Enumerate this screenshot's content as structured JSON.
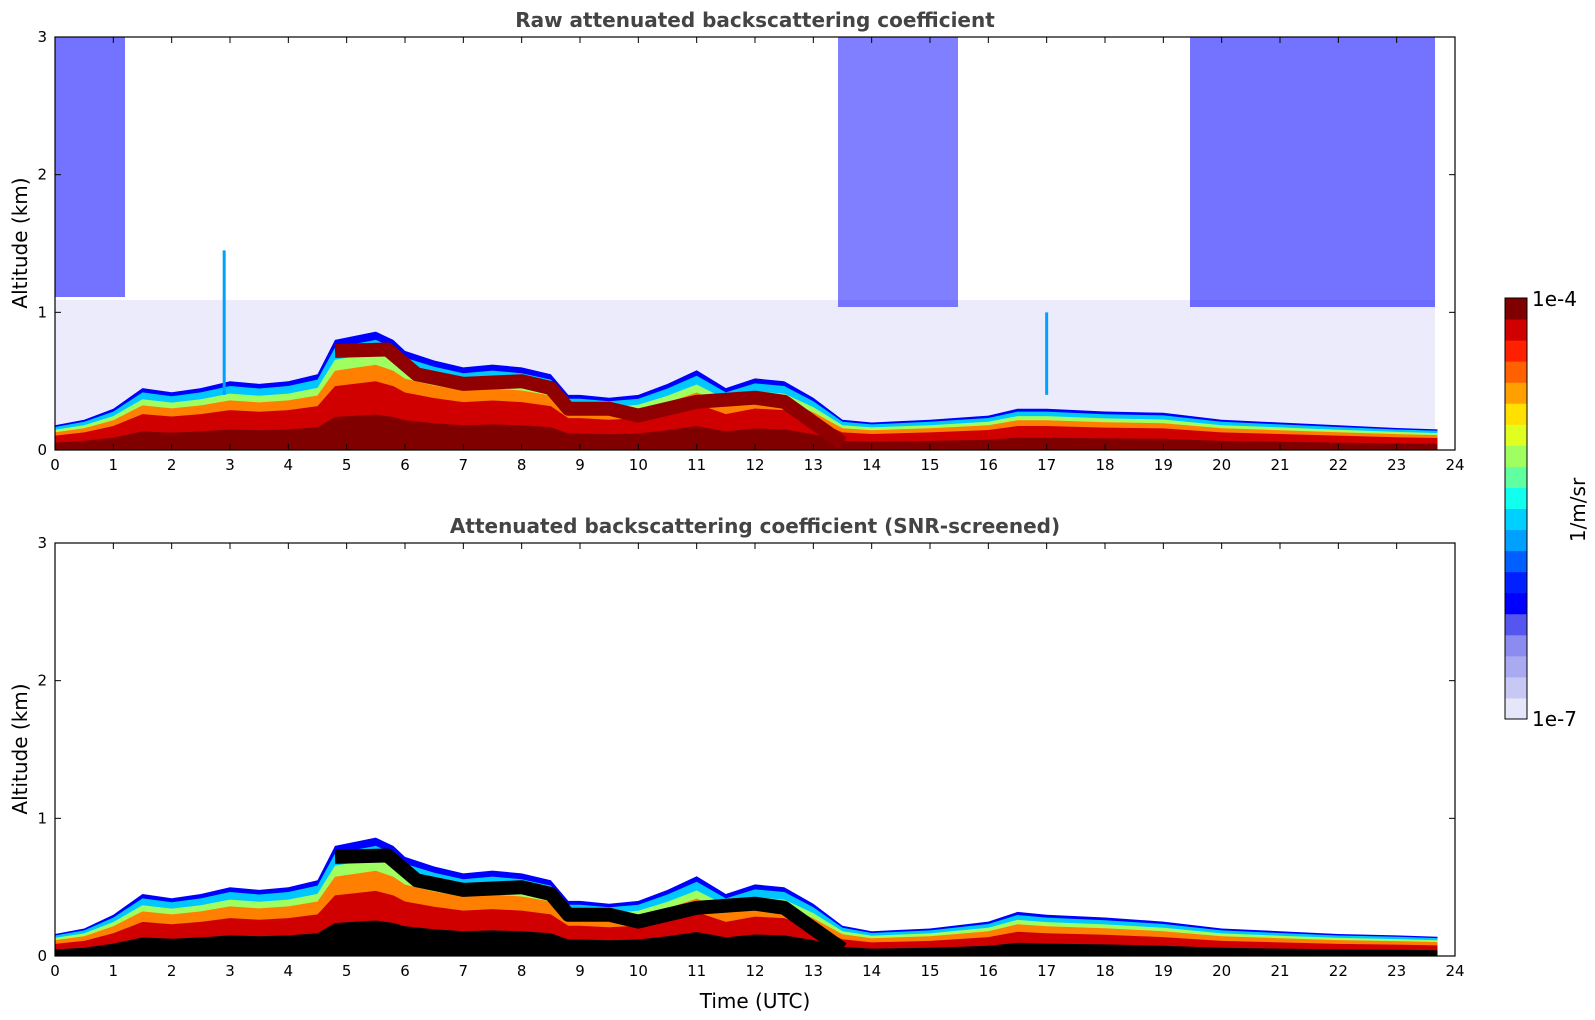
{
  "chart_data": [
    {
      "type": "heatmap",
      "title": "Raw attenuated backscattering coefficient",
      "xlabel": "",
      "ylabel": "Altitude (km)",
      "xlim": [
        0,
        24
      ],
      "ylim": [
        0,
        3
      ],
      "xticks": [
        "0",
        "1",
        "2",
        "3",
        "4",
        "5",
        "6",
        "7",
        "8",
        "9",
        "10",
        "11",
        "12",
        "13",
        "14",
        "15",
        "16",
        "17",
        "18",
        "19",
        "20",
        "21",
        "22",
        "23",
        "24"
      ],
      "yticks": [
        "0",
        "1",
        "2",
        "3"
      ],
      "data_end_hour": 23.7,
      "boundary_layer_top_km": [
        [
          0,
          0.18
        ],
        [
          0.5,
          0.22
        ],
        [
          1,
          0.3
        ],
        [
          1.5,
          0.45
        ],
        [
          2,
          0.42
        ],
        [
          2.5,
          0.45
        ],
        [
          3,
          0.5
        ],
        [
          3.5,
          0.48
        ],
        [
          4,
          0.5
        ],
        [
          4.5,
          0.55
        ],
        [
          4.8,
          0.8
        ],
        [
          5.5,
          0.86
        ],
        [
          5.8,
          0.8
        ],
        [
          6,
          0.72
        ],
        [
          6.5,
          0.65
        ],
        [
          7,
          0.6
        ],
        [
          7.5,
          0.62
        ],
        [
          8,
          0.6
        ],
        [
          8.5,
          0.55
        ],
        [
          8.8,
          0.4
        ],
        [
          9,
          0.4
        ],
        [
          9.5,
          0.38
        ],
        [
          10,
          0.4
        ],
        [
          10.5,
          0.48
        ],
        [
          11,
          0.58
        ],
        [
          11.5,
          0.45
        ],
        [
          12,
          0.52
        ],
        [
          12.5,
          0.5
        ],
        [
          13,
          0.38
        ],
        [
          13.5,
          0.22
        ],
        [
          14,
          0.2
        ],
        [
          15,
          0.22
        ],
        [
          16,
          0.25
        ],
        [
          16.5,
          0.3
        ],
        [
          17,
          0.3
        ],
        [
          18,
          0.28
        ],
        [
          19,
          0.27
        ],
        [
          20,
          0.22
        ],
        [
          21,
          0.2
        ],
        [
          22,
          0.18
        ],
        [
          23,
          0.16
        ],
        [
          23.7,
          0.15
        ]
      ],
      "features": {
        "elevated_layer_km": [
          [
            4.8,
            0.72
          ],
          [
            5.7,
            0.73
          ],
          [
            6.2,
            0.55
          ],
          [
            7,
            0.48
          ],
          [
            8,
            0.5
          ],
          [
            8.5,
            0.45
          ],
          [
            8.8,
            0.3
          ],
          [
            9.5,
            0.3
          ],
          [
            10,
            0.25
          ],
          [
            11,
            0.35
          ],
          [
            12,
            0.38
          ],
          [
            12.5,
            0.35
          ],
          [
            13,
            0.2
          ],
          [
            13.5,
            0.05
          ]
        ],
        "plume_spikes": [
          {
            "hour": 2.9,
            "top_km": 1.45
          },
          {
            "hour": 17.0,
            "top_km": 1.0
          }
        ]
      }
    },
    {
      "type": "heatmap",
      "title": "Attenuated backscattering coefficient (SNR-screened)",
      "xlabel": "Time (UTC)",
      "ylabel": "Altitude (km)",
      "xlim": [
        0,
        24
      ],
      "ylim": [
        0,
        3
      ],
      "xticks": [
        "0",
        "1",
        "2",
        "3",
        "4",
        "5",
        "6",
        "7",
        "8",
        "9",
        "10",
        "11",
        "12",
        "13",
        "14",
        "15",
        "16",
        "17",
        "18",
        "19",
        "20",
        "21",
        "22",
        "23",
        "24"
      ],
      "yticks": [
        "0",
        "1",
        "2",
        "3"
      ],
      "data_end_hour": 23.7,
      "boundary_layer_top_km": [
        [
          0,
          0.16
        ],
        [
          0.5,
          0.2
        ],
        [
          1,
          0.3
        ],
        [
          1.5,
          0.45
        ],
        [
          2,
          0.42
        ],
        [
          2.5,
          0.45
        ],
        [
          3,
          0.5
        ],
        [
          3.5,
          0.48
        ],
        [
          4,
          0.5
        ],
        [
          4.5,
          0.55
        ],
        [
          4.8,
          0.8
        ],
        [
          5.5,
          0.86
        ],
        [
          5.8,
          0.8
        ],
        [
          6,
          0.72
        ],
        [
          6.5,
          0.65
        ],
        [
          7,
          0.6
        ],
        [
          7.5,
          0.62
        ],
        [
          8,
          0.6
        ],
        [
          8.5,
          0.55
        ],
        [
          8.8,
          0.4
        ],
        [
          9,
          0.4
        ],
        [
          9.5,
          0.38
        ],
        [
          10,
          0.4
        ],
        [
          10.5,
          0.48
        ],
        [
          11,
          0.58
        ],
        [
          11.5,
          0.45
        ],
        [
          12,
          0.52
        ],
        [
          12.5,
          0.5
        ],
        [
          13,
          0.38
        ],
        [
          13.5,
          0.22
        ],
        [
          14,
          0.18
        ],
        [
          15,
          0.2
        ],
        [
          16,
          0.25
        ],
        [
          16.5,
          0.32
        ],
        [
          17,
          0.3
        ],
        [
          18,
          0.28
        ],
        [
          19,
          0.25
        ],
        [
          20,
          0.2
        ],
        [
          21,
          0.18
        ],
        [
          22,
          0.16
        ],
        [
          23,
          0.15
        ],
        [
          23.7,
          0.14
        ]
      ]
    }
  ],
  "colorbar": {
    "max_label": "1e-4",
    "min_label": "1e-7",
    "unit_label": "1/m/sr",
    "colors": [
      "#e6e6fa",
      "#c8c8f5",
      "#aaaaf0",
      "#8c8cf0",
      "#5555f0",
      "#0000ff",
      "#0020ff",
      "#0060ff",
      "#00a0ff",
      "#00d0ff",
      "#10ffef",
      "#60ff9f",
      "#a0ff60",
      "#e0ff20",
      "#ffe000",
      "#ffa000",
      "#ff6000",
      "#ff2000",
      "#d00000",
      "#800000"
    ]
  }
}
